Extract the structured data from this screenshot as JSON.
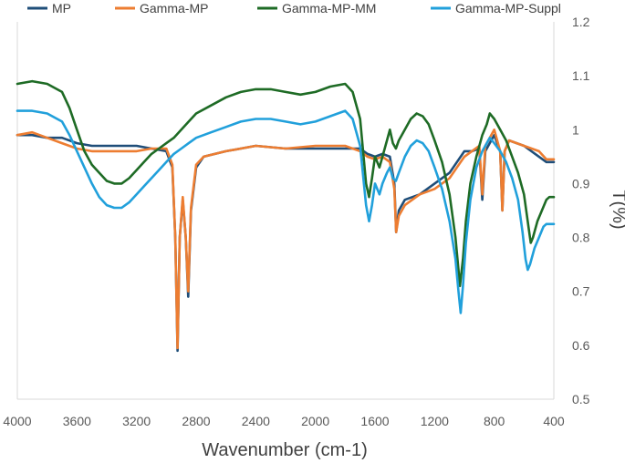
{
  "chart_data": {
    "type": "line",
    "title": "",
    "xlabel": "Wavenumber (cm-1)",
    "ylabel": "T(%)",
    "xlim": [
      4000,
      400
    ],
    "ylim": [
      0.5,
      1.2
    ],
    "x_reversed": true,
    "y_axis_side": "right",
    "grid": false,
    "legend_position": "top",
    "x_ticks": [
      "4000",
      "3600",
      "3200",
      "2800",
      "2400",
      "2000",
      "1600",
      "1200",
      "800",
      "400"
    ],
    "y_ticks": [
      "0.5",
      "0.6",
      "0.7",
      "0.8",
      "0.9",
      "1",
      "1.1",
      "1.2"
    ],
    "series": [
      {
        "name": "MP",
        "color": "#1f4e79",
        "points": [
          [
            4000,
            0.99
          ],
          [
            3900,
            0.99
          ],
          [
            3800,
            0.985
          ],
          [
            3700,
            0.985
          ],
          [
            3600,
            0.975
          ],
          [
            3500,
            0.97
          ],
          [
            3400,
            0.97
          ],
          [
            3300,
            0.97
          ],
          [
            3200,
            0.97
          ],
          [
            3100,
            0.965
          ],
          [
            3000,
            0.96
          ],
          [
            2960,
            0.93
          ],
          [
            2940,
            0.8
          ],
          [
            2925,
            0.59
          ],
          [
            2910,
            0.8
          ],
          [
            2890,
            0.87
          ],
          [
            2870,
            0.8
          ],
          [
            2853,
            0.69
          ],
          [
            2835,
            0.85
          ],
          [
            2800,
            0.93
          ],
          [
            2750,
            0.95
          ],
          [
            2600,
            0.96
          ],
          [
            2400,
            0.97
          ],
          [
            2200,
            0.965
          ],
          [
            2000,
            0.965
          ],
          [
            1800,
            0.965
          ],
          [
            1700,
            0.965
          ],
          [
            1650,
            0.955
          ],
          [
            1600,
            0.95
          ],
          [
            1550,
            0.955
          ],
          [
            1500,
            0.95
          ],
          [
            1470,
            0.9
          ],
          [
            1458,
            0.81
          ],
          [
            1440,
            0.85
          ],
          [
            1400,
            0.87
          ],
          [
            1300,
            0.88
          ],
          [
            1200,
            0.9
          ],
          [
            1100,
            0.92
          ],
          [
            1050,
            0.94
          ],
          [
            1000,
            0.96
          ],
          [
            950,
            0.96
          ],
          [
            900,
            0.965
          ],
          [
            880,
            0.87
          ],
          [
            860,
            0.96
          ],
          [
            820,
            0.98
          ],
          [
            800,
            0.99
          ],
          [
            760,
            0.96
          ],
          [
            745,
            0.85
          ],
          [
            730,
            0.96
          ],
          [
            700,
            0.98
          ],
          [
            600,
            0.97
          ],
          [
            500,
            0.95
          ],
          [
            450,
            0.94
          ],
          [
            400,
            0.94
          ]
        ]
      },
      {
        "name": "Gamma-MP",
        "color": "#ed7d31",
        "points": [
          [
            4000,
            0.99
          ],
          [
            3900,
            0.995
          ],
          [
            3800,
            0.985
          ],
          [
            3700,
            0.975
          ],
          [
            3600,
            0.965
          ],
          [
            3500,
            0.96
          ],
          [
            3400,
            0.96
          ],
          [
            3300,
            0.96
          ],
          [
            3200,
            0.96
          ],
          [
            3100,
            0.965
          ],
          [
            3000,
            0.965
          ],
          [
            2960,
            0.935
          ],
          [
            2940,
            0.8
          ],
          [
            2925,
            0.595
          ],
          [
            2910,
            0.8
          ],
          [
            2890,
            0.875
          ],
          [
            2870,
            0.8
          ],
          [
            2853,
            0.7
          ],
          [
            2835,
            0.855
          ],
          [
            2800,
            0.935
          ],
          [
            2750,
            0.95
          ],
          [
            2600,
            0.96
          ],
          [
            2400,
            0.97
          ],
          [
            2200,
            0.965
          ],
          [
            2000,
            0.97
          ],
          [
            1800,
            0.97
          ],
          [
            1700,
            0.96
          ],
          [
            1650,
            0.95
          ],
          [
            1600,
            0.945
          ],
          [
            1550,
            0.95
          ],
          [
            1500,
            0.94
          ],
          [
            1470,
            0.89
          ],
          [
            1458,
            0.81
          ],
          [
            1440,
            0.84
          ],
          [
            1400,
            0.86
          ],
          [
            1300,
            0.88
          ],
          [
            1200,
            0.89
          ],
          [
            1100,
            0.91
          ],
          [
            1050,
            0.93
          ],
          [
            1000,
            0.95
          ],
          [
            950,
            0.96
          ],
          [
            900,
            0.97
          ],
          [
            880,
            0.88
          ],
          [
            860,
            0.97
          ],
          [
            820,
            0.99
          ],
          [
            800,
            1.0
          ],
          [
            760,
            0.96
          ],
          [
            745,
            0.85
          ],
          [
            730,
            0.96
          ],
          [
            700,
            0.98
          ],
          [
            600,
            0.97
          ],
          [
            500,
            0.96
          ],
          [
            450,
            0.945
          ],
          [
            400,
            0.945
          ]
        ]
      },
      {
        "name": "Gamma-MP-MM",
        "color": "#1e6b25",
        "points": [
          [
            4000,
            1.085
          ],
          [
            3900,
            1.09
          ],
          [
            3800,
            1.085
          ],
          [
            3700,
            1.07
          ],
          [
            3650,
            1.04
          ],
          [
            3600,
            1.0
          ],
          [
            3550,
            0.96
          ],
          [
            3500,
            0.935
          ],
          [
            3450,
            0.92
          ],
          [
            3400,
            0.905
          ],
          [
            3350,
            0.9
          ],
          [
            3300,
            0.9
          ],
          [
            3250,
            0.91
          ],
          [
            3200,
            0.925
          ],
          [
            3150,
            0.94
          ],
          [
            3100,
            0.955
          ],
          [
            3050,
            0.965
          ],
          [
            3000,
            0.975
          ],
          [
            2950,
            0.985
          ],
          [
            2900,
            1.0
          ],
          [
            2850,
            1.015
          ],
          [
            2800,
            1.03
          ],
          [
            2700,
            1.045
          ],
          [
            2600,
            1.06
          ],
          [
            2500,
            1.07
          ],
          [
            2400,
            1.075
          ],
          [
            2300,
            1.075
          ],
          [
            2200,
            1.07
          ],
          [
            2100,
            1.065
          ],
          [
            2000,
            1.07
          ],
          [
            1900,
            1.08
          ],
          [
            1800,
            1.085
          ],
          [
            1750,
            1.07
          ],
          [
            1700,
            1.02
          ],
          [
            1660,
            0.9
          ],
          [
            1640,
            0.875
          ],
          [
            1620,
            0.91
          ],
          [
            1600,
            0.95
          ],
          [
            1570,
            0.93
          ],
          [
            1550,
            0.95
          ],
          [
            1520,
            0.98
          ],
          [
            1500,
            1.0
          ],
          [
            1480,
            0.975
          ],
          [
            1460,
            0.965
          ],
          [
            1440,
            0.98
          ],
          [
            1400,
            1.0
          ],
          [
            1360,
            1.02
          ],
          [
            1320,
            1.03
          ],
          [
            1280,
            1.025
          ],
          [
            1240,
            1.01
          ],
          [
            1200,
            0.98
          ],
          [
            1150,
            0.94
          ],
          [
            1100,
            0.88
          ],
          [
            1060,
            0.8
          ],
          [
            1040,
            0.74
          ],
          [
            1030,
            0.71
          ],
          [
            1010,
            0.76
          ],
          [
            990,
            0.83
          ],
          [
            960,
            0.9
          ],
          [
            920,
            0.95
          ],
          [
            880,
            0.99
          ],
          [
            850,
            1.01
          ],
          [
            830,
            1.03
          ],
          [
            800,
            1.02
          ],
          [
            760,
            1.0
          ],
          [
            720,
            0.98
          ],
          [
            680,
            0.95
          ],
          [
            640,
            0.92
          ],
          [
            600,
            0.88
          ],
          [
            570,
            0.82
          ],
          [
            555,
            0.79
          ],
          [
            540,
            0.8
          ],
          [
            510,
            0.83
          ],
          [
            480,
            0.85
          ],
          [
            450,
            0.87
          ],
          [
            430,
            0.875
          ],
          [
            400,
            0.875
          ]
        ]
      },
      {
        "name": "Gamma-MP-Suppl",
        "color": "#21a0db",
        "points": [
          [
            4000,
            1.035
          ],
          [
            3900,
            1.035
          ],
          [
            3800,
            1.03
          ],
          [
            3700,
            1.015
          ],
          [
            3650,
            0.99
          ],
          [
            3600,
            0.96
          ],
          [
            3550,
            0.93
          ],
          [
            3500,
            0.9
          ],
          [
            3450,
            0.875
          ],
          [
            3400,
            0.86
          ],
          [
            3350,
            0.855
          ],
          [
            3300,
            0.855
          ],
          [
            3250,
            0.865
          ],
          [
            3200,
            0.88
          ],
          [
            3150,
            0.895
          ],
          [
            3100,
            0.91
          ],
          [
            3050,
            0.925
          ],
          [
            3000,
            0.94
          ],
          [
            2950,
            0.955
          ],
          [
            2900,
            0.965
          ],
          [
            2850,
            0.975
          ],
          [
            2800,
            0.985
          ],
          [
            2700,
            0.995
          ],
          [
            2600,
            1.005
          ],
          [
            2500,
            1.015
          ],
          [
            2400,
            1.02
          ],
          [
            2300,
            1.02
          ],
          [
            2200,
            1.015
          ],
          [
            2100,
            1.01
          ],
          [
            2000,
            1.015
          ],
          [
            1900,
            1.025
          ],
          [
            1800,
            1.035
          ],
          [
            1750,
            1.02
          ],
          [
            1700,
            0.97
          ],
          [
            1660,
            0.86
          ],
          [
            1640,
            0.83
          ],
          [
            1620,
            0.86
          ],
          [
            1600,
            0.9
          ],
          [
            1570,
            0.88
          ],
          [
            1550,
            0.9
          ],
          [
            1520,
            0.92
          ],
          [
            1500,
            0.93
          ],
          [
            1480,
            0.91
          ],
          [
            1460,
            0.905
          ],
          [
            1440,
            0.92
          ],
          [
            1400,
            0.95
          ],
          [
            1360,
            0.97
          ],
          [
            1320,
            0.98
          ],
          [
            1280,
            0.975
          ],
          [
            1240,
            0.96
          ],
          [
            1200,
            0.93
          ],
          [
            1150,
            0.89
          ],
          [
            1100,
            0.83
          ],
          [
            1060,
            0.76
          ],
          [
            1040,
            0.7
          ],
          [
            1025,
            0.66
          ],
          [
            1010,
            0.71
          ],
          [
            990,
            0.79
          ],
          [
            960,
            0.87
          ],
          [
            920,
            0.93
          ],
          [
            880,
            0.96
          ],
          [
            850,
            0.975
          ],
          [
            830,
            0.985
          ],
          [
            800,
            0.975
          ],
          [
            760,
            0.96
          ],
          [
            720,
            0.94
          ],
          [
            680,
            0.91
          ],
          [
            640,
            0.87
          ],
          [
            610,
            0.81
          ],
          [
            590,
            0.76
          ],
          [
            575,
            0.74
          ],
          [
            560,
            0.75
          ],
          [
            530,
            0.78
          ],
          [
            500,
            0.8
          ],
          [
            470,
            0.82
          ],
          [
            450,
            0.825
          ],
          [
            400,
            0.825
          ]
        ]
      }
    ]
  }
}
